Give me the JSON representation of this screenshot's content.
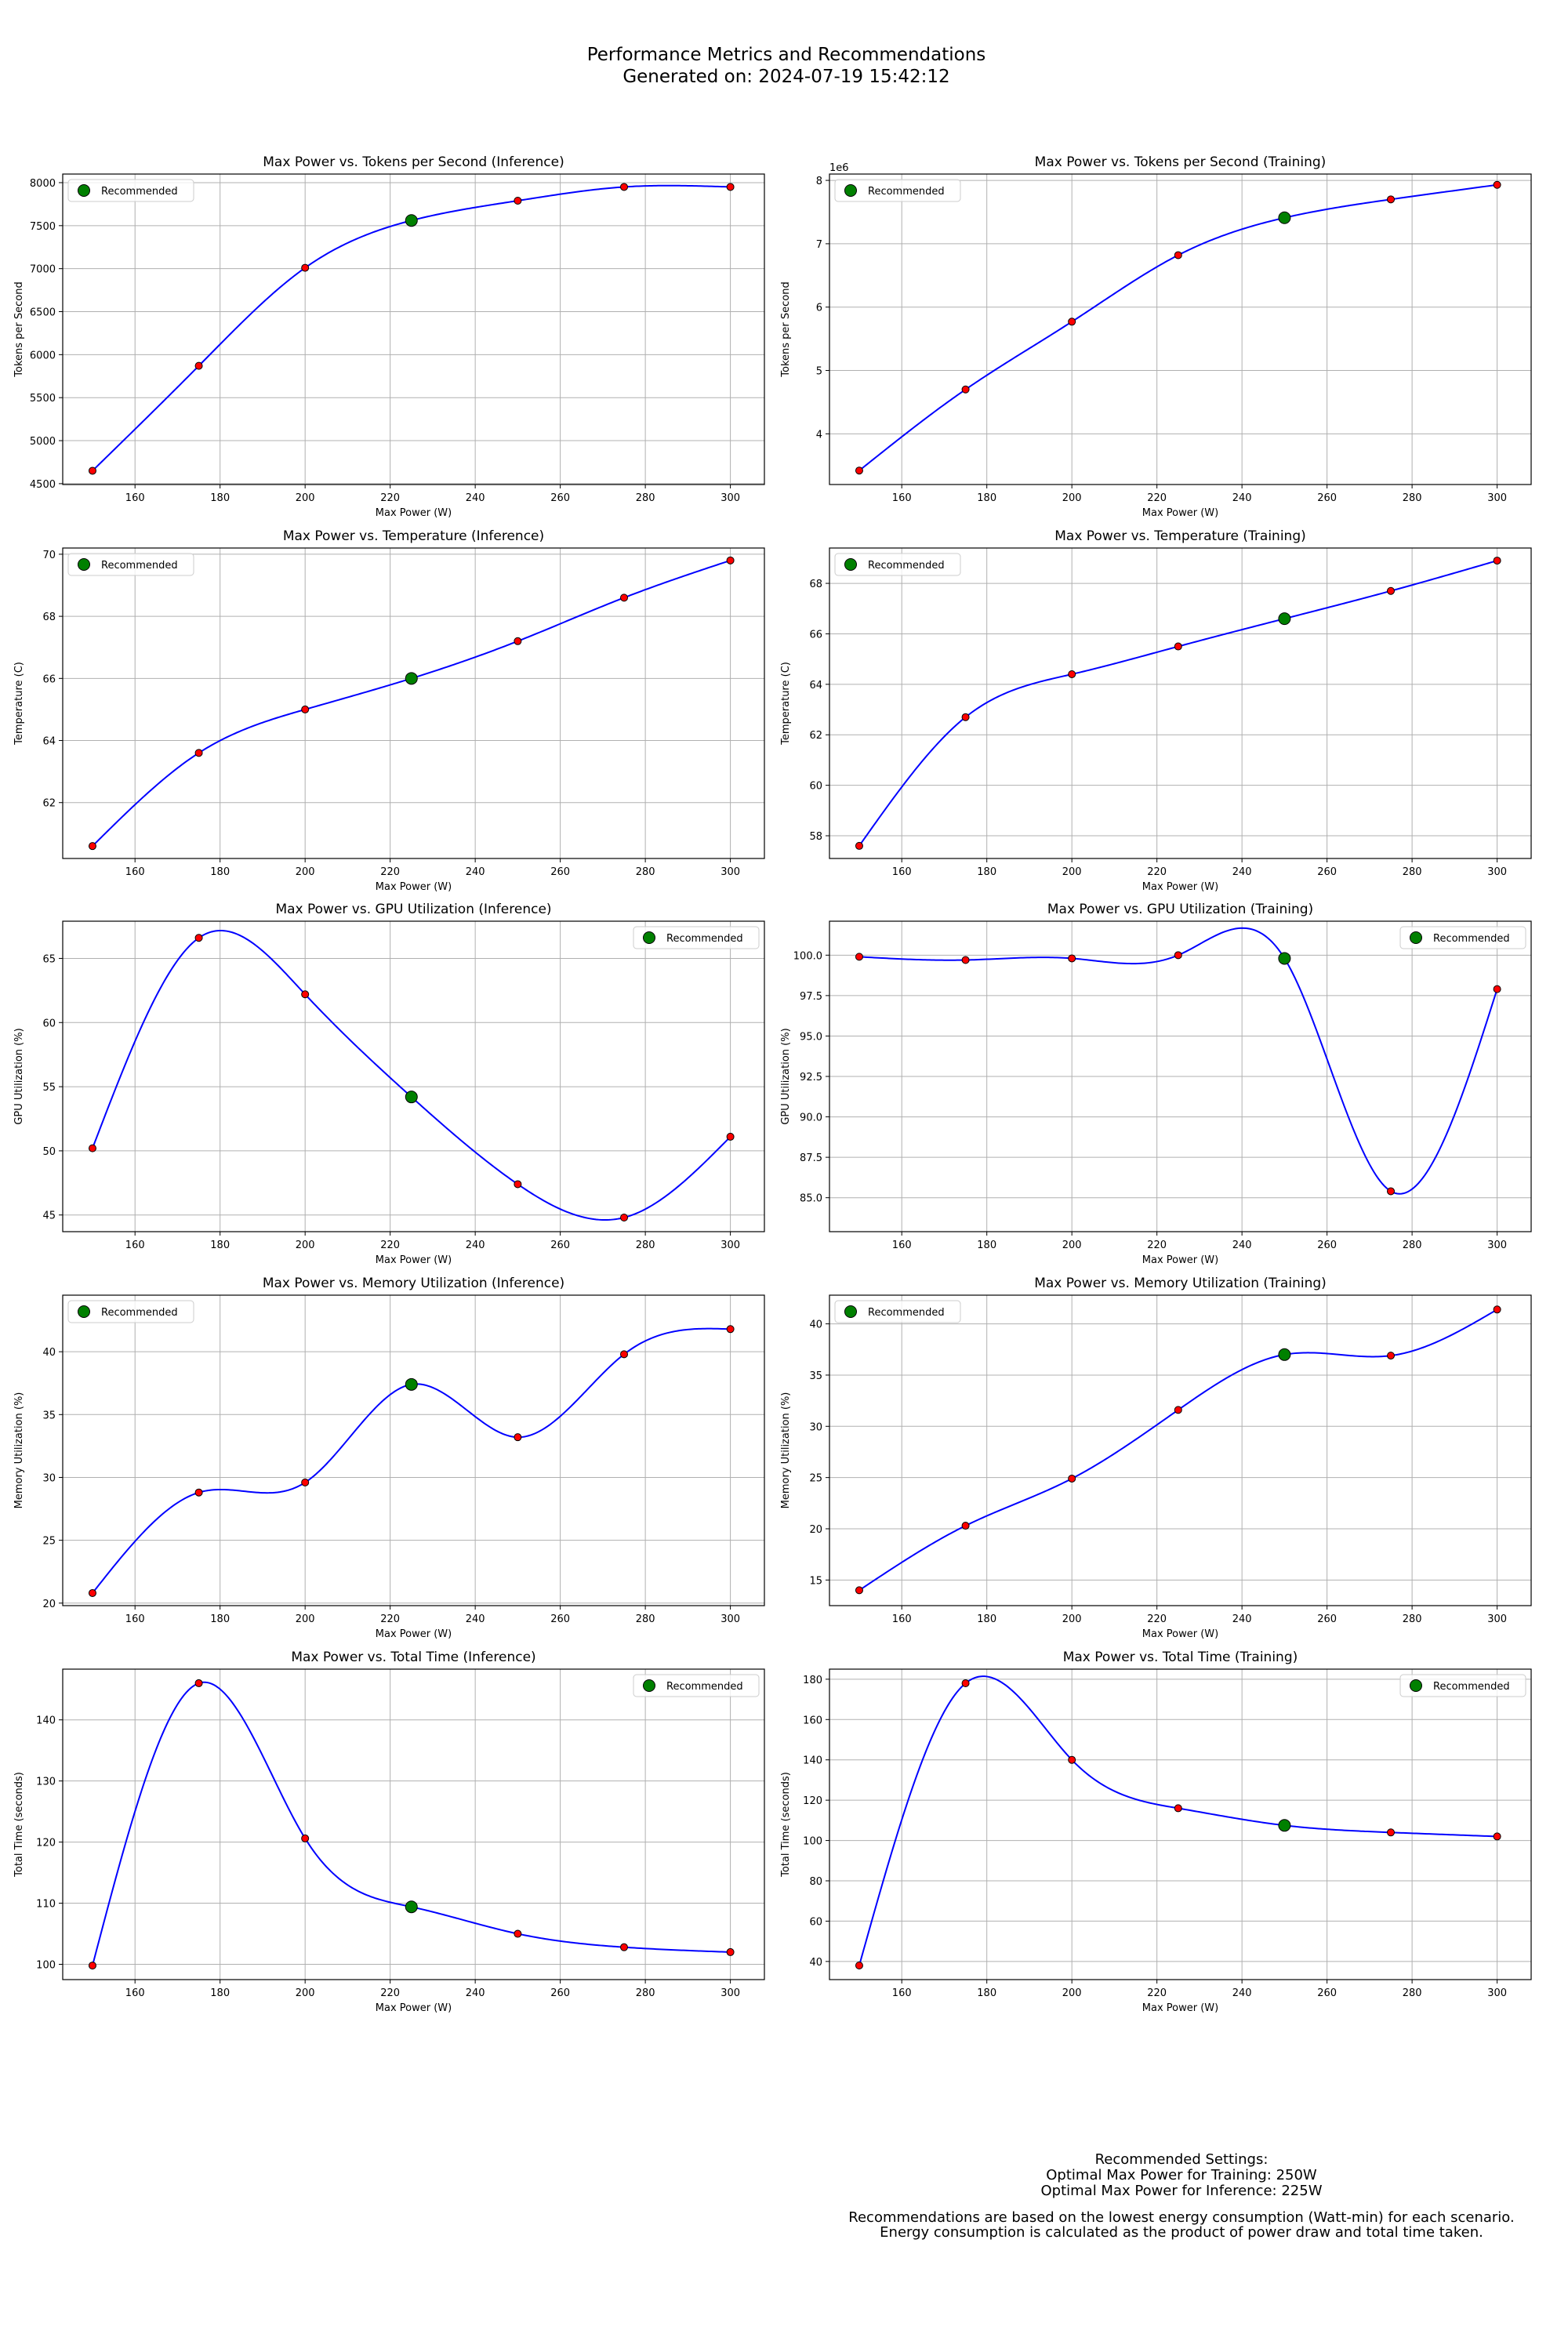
{
  "figure": {
    "title_line1": "Performance Metrics and Recommendations",
    "title_line2": "Generated on: 2024-07-19 15:42:12"
  },
  "colors": {
    "line": "#0000ff",
    "point_fill": "#ff0000",
    "recommended_fill": "#008000",
    "marker_edge": "#000000",
    "grid": "#b0b0b0"
  },
  "chart_data": [
    {
      "type": "line",
      "title": "Max Power vs. Tokens per Second (Inference)",
      "xlabel": "Max Power (W)",
      "ylabel": "Tokens per Second",
      "x": [
        150,
        175,
        200,
        225,
        250,
        275,
        300
      ],
      "values": [
        4650,
        5870,
        7010,
        7560,
        7790,
        7950,
        7950
      ],
      "xlim": [
        143,
        308
      ],
      "ylim": [
        4490,
        8100
      ],
      "xticks": [
        160,
        180,
        200,
        220,
        240,
        260,
        280,
        300
      ],
      "yticks": [
        4500,
        5000,
        5500,
        6000,
        6500,
        7000,
        7500,
        8000
      ],
      "recommended": {
        "x": 225,
        "y": 7560
      },
      "legend": {
        "label": "Recommended",
        "position": "upper left"
      },
      "grid": true
    },
    {
      "type": "line",
      "title": "Max Power vs. Tokens per Second (Training)",
      "xlabel": "Max Power (W)",
      "ylabel": "Tokens per Second",
      "offset_text": "1e6",
      "x": [
        150,
        175,
        200,
        225,
        250,
        275,
        300
      ],
      "values": [
        3.42,
        4.7,
        5.77,
        6.82,
        7.41,
        7.7,
        7.93
      ],
      "xlim": [
        143,
        308
      ],
      "ylim": [
        3.2,
        8.1
      ],
      "xticks": [
        160,
        180,
        200,
        220,
        240,
        260,
        280,
        300
      ],
      "yticks": [
        4,
        5,
        6,
        7,
        8
      ],
      "recommended": {
        "x": 250,
        "y": 7.41
      },
      "legend": {
        "label": "Recommended",
        "position": "upper left"
      },
      "grid": true
    },
    {
      "type": "line",
      "title": "Max Power vs. Temperature (Inference)",
      "xlabel": "Max Power (W)",
      "ylabel": "Temperature (C)",
      "x": [
        150,
        175,
        200,
        225,
        250,
        275,
        300
      ],
      "values": [
        60.6,
        63.6,
        65.0,
        66.0,
        67.2,
        68.6,
        69.8
      ],
      "xlim": [
        143,
        308
      ],
      "ylim": [
        60.2,
        70.2
      ],
      "xticks": [
        160,
        180,
        200,
        220,
        240,
        260,
        280,
        300
      ],
      "yticks": [
        62,
        64,
        66,
        68,
        70
      ],
      "recommended": {
        "x": 225,
        "y": 66.0
      },
      "legend": {
        "label": "Recommended",
        "position": "upper left"
      },
      "grid": true
    },
    {
      "type": "line",
      "title": "Max Power vs. Temperature (Training)",
      "xlabel": "Max Power (W)",
      "ylabel": "Temperature (C)",
      "x": [
        150,
        175,
        200,
        225,
        250,
        275,
        300
      ],
      "values": [
        57.6,
        62.7,
        64.4,
        65.5,
        66.6,
        67.7,
        68.9
      ],
      "xlim": [
        143,
        308
      ],
      "ylim": [
        57.1,
        69.4
      ],
      "xticks": [
        160,
        180,
        200,
        220,
        240,
        260,
        280,
        300
      ],
      "yticks": [
        58,
        60,
        62,
        64,
        66,
        68
      ],
      "recommended": {
        "x": 250,
        "y": 66.6
      },
      "legend": {
        "label": "Recommended",
        "position": "upper left"
      },
      "grid": true
    },
    {
      "type": "line",
      "title": "Max Power vs. GPU Utilization (Inference)",
      "xlabel": "Max Power (W)",
      "ylabel": "GPU Utilization (%)",
      "x": [
        150,
        175,
        200,
        225,
        250,
        275,
        300
      ],
      "values": [
        50.2,
        66.6,
        62.2,
        54.2,
        47.4,
        44.8,
        51.1
      ],
      "xlim": [
        143,
        308
      ],
      "ylim": [
        43.7,
        67.9
      ],
      "xticks": [
        160,
        180,
        200,
        220,
        240,
        260,
        280,
        300
      ],
      "yticks": [
        45,
        50,
        55,
        60,
        65
      ],
      "recommended": {
        "x": 225,
        "y": 54.2
      },
      "legend": {
        "label": "Recommended",
        "position": "upper right"
      },
      "grid": true
    },
    {
      "type": "line",
      "title": "Max Power vs. GPU Utilization (Training)",
      "xlabel": "Max Power (W)",
      "ylabel": "GPU Utilization (%)",
      "x": [
        150,
        175,
        200,
        225,
        250,
        275,
        300
      ],
      "values": [
        99.9,
        99.7,
        99.8,
        100.0,
        99.8,
        85.4,
        97.9
      ],
      "xlim": [
        143,
        308
      ],
      "ylim": [
        82.9,
        102.1
      ],
      "xticks": [
        160,
        180,
        200,
        220,
        240,
        260,
        280,
        300
      ],
      "yticks": [
        85.0,
        87.5,
        90.0,
        92.5,
        95.0,
        97.5,
        100.0
      ],
      "ytick_decimals": 1,
      "recommended": {
        "x": 250,
        "y": 99.8
      },
      "legend": {
        "label": "Recommended",
        "position": "upper right"
      },
      "grid": true
    },
    {
      "type": "line",
      "title": "Max Power vs. Memory Utilization (Inference)",
      "xlabel": "Max Power (W)",
      "ylabel": "Memory Utilization (%)",
      "x": [
        150,
        175,
        200,
        225,
        250,
        275,
        300
      ],
      "values": [
        20.8,
        28.8,
        29.6,
        37.4,
        33.2,
        39.8,
        41.8
      ],
      "xlim": [
        143,
        308
      ],
      "ylim": [
        19.8,
        44.5
      ],
      "xticks": [
        160,
        180,
        200,
        220,
        240,
        260,
        280,
        300
      ],
      "yticks": [
        20,
        25,
        30,
        35,
        40
      ],
      "recommended": {
        "x": 225,
        "y": 37.4
      },
      "legend": {
        "label": "Recommended",
        "position": "upper left"
      },
      "grid": true
    },
    {
      "type": "line",
      "title": "Max Power vs. Memory Utilization (Training)",
      "xlabel": "Max Power (W)",
      "ylabel": "Memory Utilization (%)",
      "x": [
        150,
        175,
        200,
        225,
        250,
        275,
        300
      ],
      "values": [
        14.0,
        20.3,
        24.9,
        31.6,
        37.0,
        36.9,
        41.4
      ],
      "xlim": [
        143,
        308
      ],
      "ylim": [
        12.5,
        42.8
      ],
      "xticks": [
        160,
        180,
        200,
        220,
        240,
        260,
        280,
        300
      ],
      "yticks": [
        15,
        20,
        25,
        30,
        35,
        40
      ],
      "recommended": {
        "x": 250,
        "y": 37.0
      },
      "legend": {
        "label": "Recommended",
        "position": "upper left"
      },
      "grid": true
    },
    {
      "type": "line",
      "title": "Max Power vs. Total Time (Inference)",
      "xlabel": "Max Power (W)",
      "ylabel": "Total Time (seconds)",
      "x": [
        150,
        175,
        200,
        225,
        250,
        275,
        300
      ],
      "values": [
        99.8,
        146.0,
        120.6,
        109.4,
        105.0,
        102.8,
        102.0
      ],
      "xlim": [
        143,
        308
      ],
      "ylim": [
        97.5,
        148.3
      ],
      "xticks": [
        160,
        180,
        200,
        220,
        240,
        260,
        280,
        300
      ],
      "yticks": [
        100,
        110,
        120,
        130,
        140
      ],
      "recommended": {
        "x": 225,
        "y": 109.4
      },
      "legend": {
        "label": "Recommended",
        "position": "upper right"
      },
      "grid": true
    },
    {
      "type": "line",
      "title": "Max Power vs. Total Time (Training)",
      "xlabel": "Max Power (W)",
      "ylabel": "Total Time (seconds)",
      "x": [
        150,
        175,
        200,
        225,
        250,
        275,
        300
      ],
      "values": [
        38.0,
        178.0,
        140.0,
        116.0,
        107.5,
        104.0,
        102.0
      ],
      "xlim": [
        143,
        308
      ],
      "ylim": [
        31.0,
        185.0
      ],
      "xticks": [
        160,
        180,
        200,
        220,
        240,
        260,
        280,
        300
      ],
      "yticks": [
        40,
        60,
        80,
        100,
        120,
        140,
        160,
        180
      ],
      "recommended": {
        "x": 250,
        "y": 107.5
      },
      "legend": {
        "label": "Recommended",
        "position": "upper right"
      },
      "grid": true
    }
  ],
  "footer": {
    "line1": "Recommended Settings:",
    "line2": "Optimal Max Power for Training: 250W",
    "line3": "Optimal Max Power for Inference: 225W",
    "line4": "Recommendations are based on the lowest energy consumption (Watt-min) for each scenario.",
    "line5": "Energy consumption is calculated as the product of power draw and total time taken."
  }
}
